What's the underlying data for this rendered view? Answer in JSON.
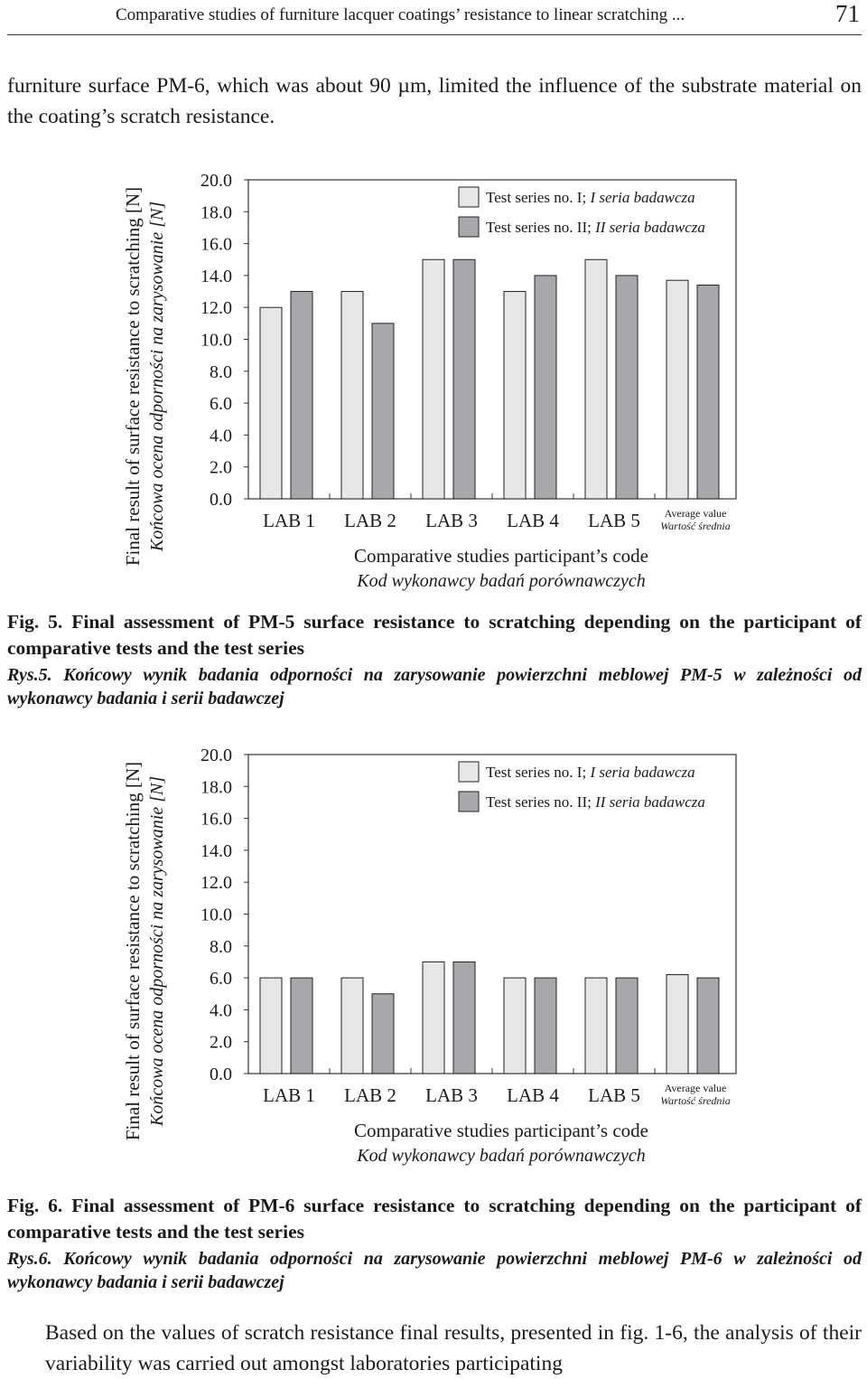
{
  "header": {
    "title": "Comparative studies of furniture lacquer coatings’ resistance to linear scratching ...",
    "page_number": "71"
  },
  "intro_text": "furniture surface PM-6, which was about 90 µm, limited the influence of the substrate material on the coating’s scratch resistance.",
  "chart_data": [
    {
      "type": "bar",
      "categories": [
        "LAB 1",
        "LAB 2",
        "LAB 3",
        "LAB 4",
        "LAB 5",
        "Average value"
      ],
      "category_sublabels": [
        "",
        "",
        "",
        "",
        "",
        "Wartość średnia"
      ],
      "series": [
        {
          "name": "Test series no. I;",
          "name_pl": "I seria badawcza",
          "color": "#e6e7e8",
          "values": [
            12.0,
            13.0,
            15.0,
            13.0,
            15.0,
            13.7
          ]
        },
        {
          "name": "Test series no. II;",
          "name_pl": "II seria badawcza",
          "color": "#a6a8ab",
          "values": [
            13.0,
            11.0,
            15.0,
            14.0,
            14.0,
            13.4
          ]
        }
      ],
      "ylabel": "Final result of surface resistance to scratching [N]",
      "ylabel_pl": "Końcowa ocena odporności na zarysowanie [N]",
      "xlabel": "Comparative studies participant’s code",
      "xlabel_pl": "Kod wykonawcy badań porównawczych",
      "yticks": [
        "0.0",
        "2.0",
        "4.0",
        "6.0",
        "8.0",
        "10.0",
        "12.0",
        "14.0",
        "16.0",
        "18.0",
        "20.0"
      ],
      "ylim": [
        0,
        20
      ],
      "grid": false,
      "legend_position": "top-right"
    },
    {
      "type": "bar",
      "categories": [
        "LAB 1",
        "LAB 2",
        "LAB 3",
        "LAB 4",
        "LAB 5",
        "Average value"
      ],
      "category_sublabels": [
        "",
        "",
        "",
        "",
        "",
        "Wartość średnia"
      ],
      "series": [
        {
          "name": "Test series no. I;",
          "name_pl": "I seria badawcza",
          "color": "#e6e7e8",
          "values": [
            6.0,
            6.0,
            7.0,
            6.0,
            6.0,
            6.2
          ]
        },
        {
          "name": "Test series no. II;",
          "name_pl": "II seria badawcza",
          "color": "#a6a8ab",
          "values": [
            6.0,
            5.0,
            7.0,
            6.0,
            6.0,
            6.0
          ]
        }
      ],
      "ylabel": "Final result of surface resistance to scratching [N]",
      "ylabel_pl": "Końcowa ocena odporności na zarysowanie [N]",
      "xlabel": "Comparative studies participant’s code",
      "xlabel_pl": "Kod wykonawcy badań porównawczych",
      "yticks": [
        "0.0",
        "2.0",
        "4.0",
        "6.0",
        "8.0",
        "10.0",
        "12.0",
        "14.0",
        "16.0",
        "18.0",
        "20.0"
      ],
      "ylim": [
        0,
        20
      ],
      "grid": false,
      "legend_position": "top-right"
    }
  ],
  "captions": {
    "fig5_en": "Fig. 5. Final assessment of PM-5 surface resistance to scratching depending on the participant of comparative tests and the test series",
    "fig5_pl": "Rys.5. Końcowy wynik badania odporności na zarysowanie powierzchni meblowej PM-5 w zależności od wykonawcy badania i serii badawczej",
    "fig6_en": "Fig. 6. Final assessment of PM-6 surface resistance to scratching depending on the participant of comparative tests and the test series",
    "fig6_pl": "Rys.6. Końcowy wynik badania odporności na zarysowanie powierzchni meblowej PM-6 w zależności od wykonawcy badania i serii badawczej"
  },
  "outro_text": "Based on the values of scratch resistance final results, presented in fig. 1-6, the analysis of their variability was carried out amongst laboratories participating"
}
